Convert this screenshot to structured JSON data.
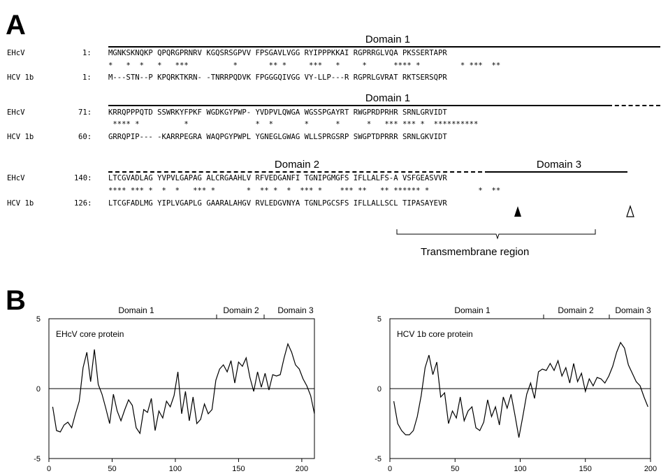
{
  "panelA": {
    "letter": "A",
    "blocks": [
      {
        "domain_label": "Domain 1",
        "ehcv": {
          "name": "EHcV",
          "start": "1:",
          "seq": "MGNKSKNQKP QPQRGPRNRV KGQSRSGPVV FPSGAVLVGG RYIPPPKKAI RGPRRGLVQA PKSSERTAPR"
        },
        "stars": "*   *  *   *   ***          *       ** *     ***   *     *      **** *         * ***  **",
        "hcv": {
          "name": "HCV 1b",
          "start": "1:",
          "seq": "M---STN--P KPQRKTKRN- -TNRRPQDVK FPGGGQIVGG VY-LLP---R RGPRLGVRAT RKTSERSQPR"
        }
      },
      {
        "domain_label": "Domain 1",
        "ehcv": {
          "name": "EHcV",
          "start": "71:",
          "seq": "KRRQPPPQTD SSWRKYFPKF WGDKGYPWP- YVDPVLQWGA WGSSPGAYRT RWGPRDPRHR SRNLGRVIDT"
        },
        "stars": " **** *          *               *  *       *      *      *   *** *** *  **********",
        "hcv": {
          "name": "HCV 1b",
          "start": "60:",
          "seq": "GRRQPIP--- -KARRPEGRA WAQPGYPWPL YGNEGLGWAG WLLSPRGSRP SWGPTDPRRR SRNLGKVIDT"
        }
      },
      {
        "domain_label_left": "Domain 2",
        "domain_label_right": "Domain 3",
        "ehcv": {
          "name": "EHcV",
          "start": "140:",
          "seq": "LTCGVADLAG YVPVLGAPAG ALCRGAAHLV RFVEDGANFI TGNIPGMGFS IFLLALFS-A VSFGEASVVR"
        },
        "stars": "**** *** *  *  *   *** *       *  ** *  *  *** *    *** **   ** ****** *           *  **",
        "hcv": {
          "name": "HCV 1b",
          "start": "126:",
          "seq": "LTCGFADLMG YIPLVGAPLG GAARALAHGV RVLEDGVNYA TGNLPGCSFS IFLLALLSCL TIPASAYEVR"
        },
        "tm_label": "Transmembrane region"
      }
    ]
  },
  "panelB": {
    "letter": "B",
    "plots": [
      {
        "title": "EHcV core protein",
        "domain1": "Domain 1",
        "domain2": "Domain 2",
        "domain3": "Domain 3",
        "xticks": [
          "0",
          "50",
          "100",
          "150",
          "200"
        ],
        "yticks": [
          "5",
          "0",
          "-5"
        ]
      },
      {
        "title": "HCV 1b core protein",
        "domain1": "Domain 1",
        "domain2": "Domain 2",
        "domain3": "Domain 3",
        "xticks": [
          "0",
          "50",
          "100",
          "150",
          "200"
        ],
        "yticks": [
          "5",
          "0",
          "-5"
        ]
      }
    ]
  },
  "chart_data": [
    {
      "type": "line",
      "title": "EHcV core protein",
      "xlim": [
        0,
        210
      ],
      "ylim": [
        -5,
        5
      ],
      "x": [
        3,
        6,
        9,
        12,
        15,
        18,
        21,
        24,
        27,
        30,
        33,
        36,
        39,
        42,
        45,
        48,
        51,
        54,
        57,
        60,
        63,
        66,
        69,
        72,
        75,
        78,
        81,
        84,
        87,
        90,
        93,
        96,
        99,
        102,
        105,
        108,
        111,
        114,
        117,
        120,
        123,
        126,
        129,
        132,
        135,
        138,
        141,
        144,
        147,
        150,
        153,
        156,
        159,
        162,
        165,
        168,
        171,
        174,
        177,
        180,
        183,
        186,
        189,
        192,
        195,
        198,
        201,
        204,
        207,
        210
      ],
      "y": [
        -1.3,
        -3.0,
        -3.1,
        -2.6,
        -2.4,
        -2.8,
        -1.8,
        -0.9,
        1.5,
        2.6,
        0.5,
        2.8,
        0.3,
        -0.4,
        -1.4,
        -2.5,
        -0.4,
        -1.6,
        -2.3,
        -1.5,
        -0.8,
        -1.2,
        -2.8,
        -3.2,
        -1.5,
        -1.7,
        -0.7,
        -3.0,
        -1.6,
        -2.1,
        -0.9,
        -1.3,
        -0.5,
        1.2,
        -1.8,
        -0.2,
        -2.3,
        -0.6,
        -2.5,
        -2.2,
        -1.1,
        -1.8,
        -1.5,
        0.6,
        1.4,
        1.7,
        1.2,
        2.0,
        0.4,
        1.9,
        1.6,
        2.2,
        0.8,
        -0.2,
        1.2,
        0.1,
        1.1,
        -0.1,
        1.0,
        0.9,
        1.0,
        2.2,
        3.2,
        2.6,
        1.7,
        1.4,
        0.7,
        0.2,
        -0.5,
        -1.8
      ]
    },
    {
      "type": "line",
      "title": "HCV 1b core protein",
      "xlim": [
        0,
        200
      ],
      "ylim": [
        -5,
        5
      ],
      "x": [
        3,
        6,
        9,
        12,
        15,
        18,
        21,
        24,
        27,
        30,
        33,
        36,
        39,
        42,
        45,
        48,
        51,
        54,
        57,
        60,
        63,
        66,
        69,
        72,
        75,
        78,
        81,
        84,
        87,
        90,
        93,
        96,
        99,
        102,
        105,
        108,
        111,
        114,
        117,
        120,
        123,
        126,
        129,
        132,
        135,
        138,
        141,
        144,
        147,
        150,
        153,
        156,
        159,
        162,
        165,
        168,
        171,
        174,
        177,
        180,
        183,
        186,
        189,
        192,
        195,
        198
      ],
      "y": [
        -0.9,
        -2.5,
        -3.0,
        -3.3,
        -3.3,
        -3.0,
        -2.0,
        -0.5,
        1.5,
        2.4,
        1.0,
        1.9,
        -0.6,
        -0.3,
        -2.5,
        -1.6,
        -2.1,
        -0.6,
        -2.3,
        -1.6,
        -1.3,
        -2.8,
        -3.0,
        -2.4,
        -0.8,
        -2.0,
        -1.3,
        -2.6,
        -0.6,
        -1.4,
        -0.4,
        -1.9,
        -3.5,
        -2.0,
        -0.4,
        0.4,
        -0.7,
        1.2,
        1.4,
        1.3,
        1.8,
        1.3,
        2.0,
        0.9,
        1.5,
        0.4,
        1.8,
        0.5,
        1.1,
        -0.2,
        0.7,
        0.2,
        0.8,
        0.7,
        0.4,
        0.9,
        1.6,
        2.6,
        3.3,
        2.9,
        1.7,
        1.1,
        0.5,
        0.2,
        -0.6,
        -1.3
      ]
    }
  ]
}
